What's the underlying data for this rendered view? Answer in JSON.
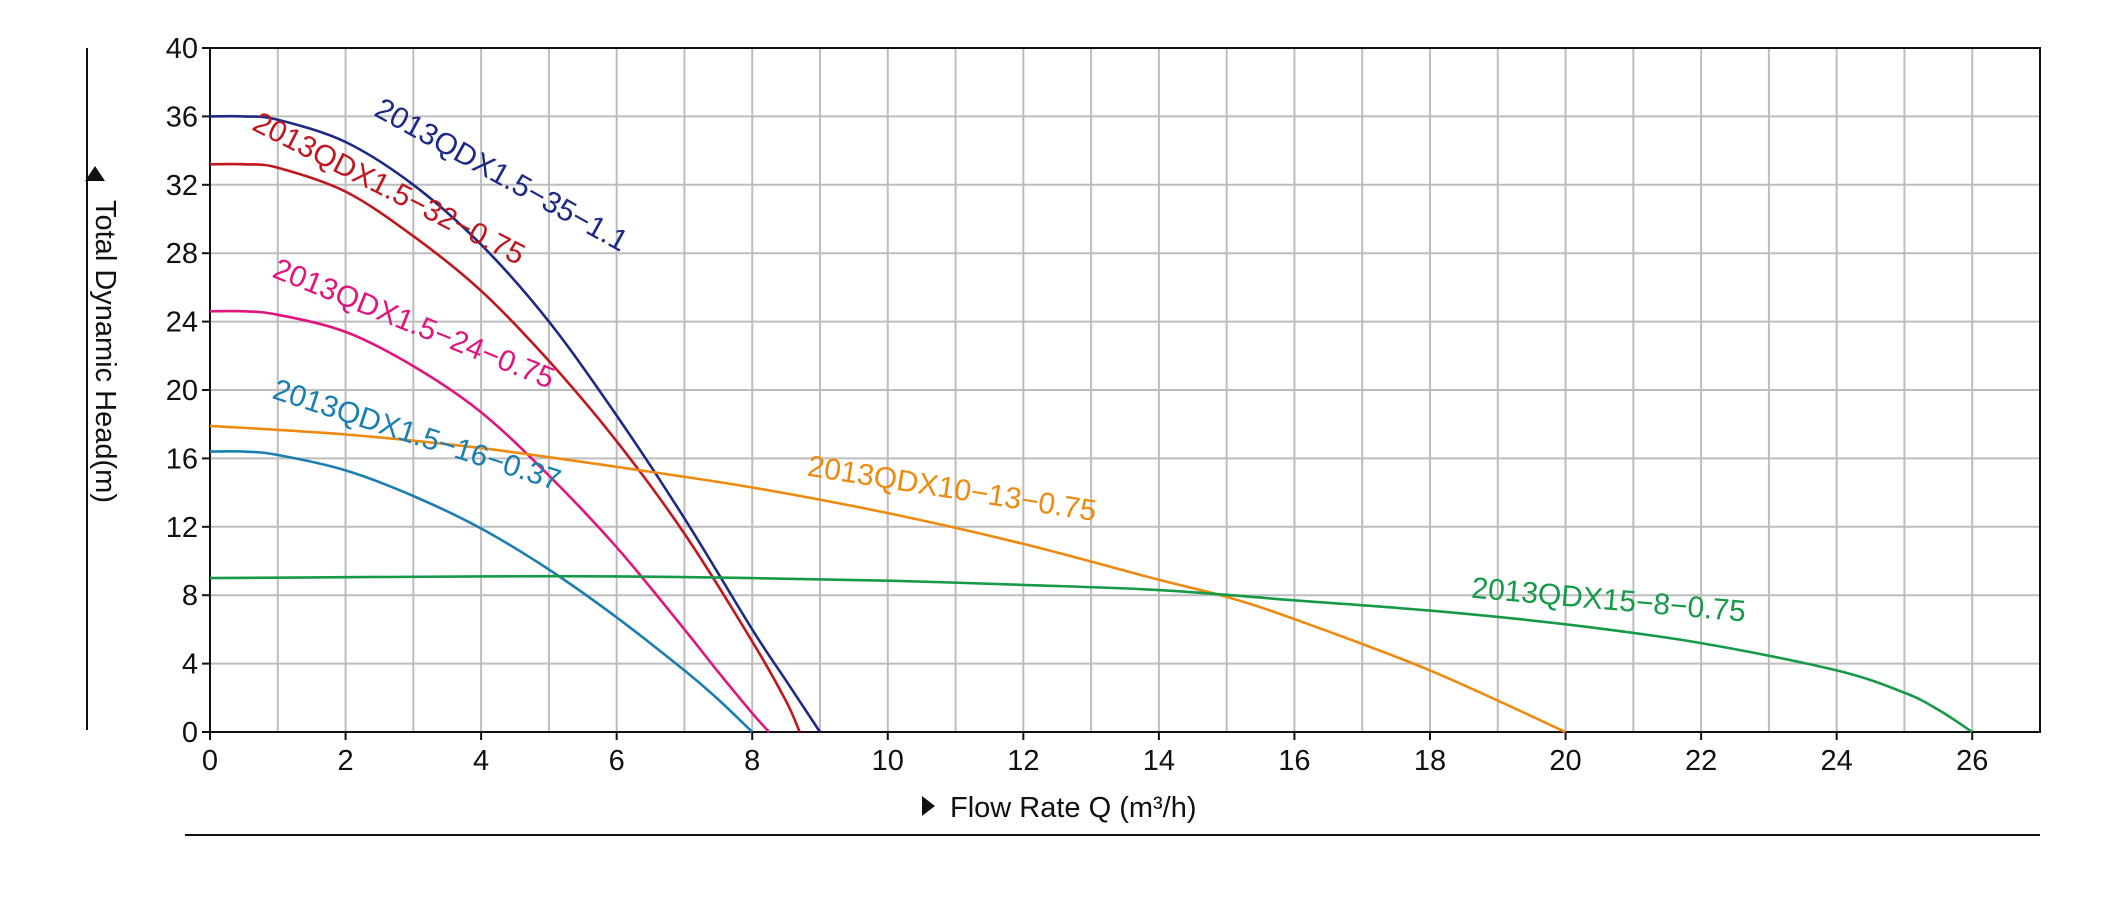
{
  "chart_data": {
    "type": "line",
    "xlabel": "Flow Rate Q (m³/h)",
    "ylabel": "Total Dynamic Head(m)",
    "xlim": [
      0,
      27
    ],
    "ylim": [
      0,
      40
    ],
    "x_ticks": [
      "0",
      "2",
      "4",
      "6",
      "8",
      "10",
      "12",
      "14",
      "16",
      "18",
      "20",
      "22",
      "24",
      "26"
    ],
    "y_ticks": [
      "0",
      "4",
      "8",
      "12",
      "16",
      "20",
      "24",
      "28",
      "32",
      "36",
      "40"
    ],
    "grid": true,
    "series": [
      {
        "name": "2013QDX1.5−35−1.1",
        "color": "#1c2a86",
        "x": [
          0,
          0.5,
          1,
          2,
          3,
          4,
          5,
          6,
          7,
          8,
          8.5,
          9
        ],
        "y": [
          36.0,
          36.0,
          35.8,
          34.5,
          32.0,
          28.5,
          24.0,
          18.5,
          12.5,
          6.0,
          3.0,
          0
        ]
      },
      {
        "name": "2013QDX1.5−32−0.75",
        "color": "#c0161e",
        "x": [
          0,
          0.5,
          1,
          2,
          3,
          4,
          5,
          6,
          7,
          8,
          8.5,
          8.7
        ],
        "y": [
          33.2,
          33.2,
          33.0,
          31.6,
          29.0,
          25.8,
          21.7,
          17.0,
          11.6,
          5.3,
          1.8,
          0
        ]
      },
      {
        "name": "2013QDX1.5−24−0.75",
        "color": "#e0147c",
        "x": [
          0,
          0.5,
          1,
          2,
          3,
          4,
          5,
          6,
          7,
          7.5,
          8,
          8.25
        ],
        "y": [
          24.6,
          24.6,
          24.4,
          23.4,
          21.4,
          18.7,
          15.0,
          10.8,
          6.0,
          3.5,
          1.1,
          0
        ]
      },
      {
        "name": "2013QDX1.5−16−0.37",
        "color": "#1a7fb0",
        "x": [
          0,
          0.5,
          1,
          2,
          3,
          4,
          5,
          6,
          7,
          7.5,
          8
        ],
        "y": [
          16.4,
          16.4,
          16.2,
          15.3,
          13.8,
          11.9,
          9.5,
          6.7,
          3.6,
          1.9,
          0
        ]
      },
      {
        "name": "2013QDX10−13−0.75",
        "color": "#ee8a10",
        "x": [
          0,
          2,
          4,
          6,
          8,
          10,
          12,
          14,
          15,
          16,
          18,
          20
        ],
        "y": [
          17.9,
          17.4,
          16.6,
          15.5,
          14.3,
          12.8,
          11.0,
          8.9,
          7.9,
          6.6,
          3.6,
          0
        ]
      },
      {
        "name": "2013QDX15−8−0.75",
        "color": "#169a48",
        "x": [
          0,
          2,
          4,
          6,
          8,
          10,
          12,
          14,
          16,
          18,
          20,
          22,
          24,
          25,
          25.5,
          26
        ],
        "y": [
          9.0,
          9.05,
          9.1,
          9.1,
          9.0,
          8.85,
          8.6,
          8.3,
          7.7,
          7.1,
          6.3,
          5.2,
          3.6,
          2.3,
          1.3,
          0
        ]
      }
    ]
  }
}
